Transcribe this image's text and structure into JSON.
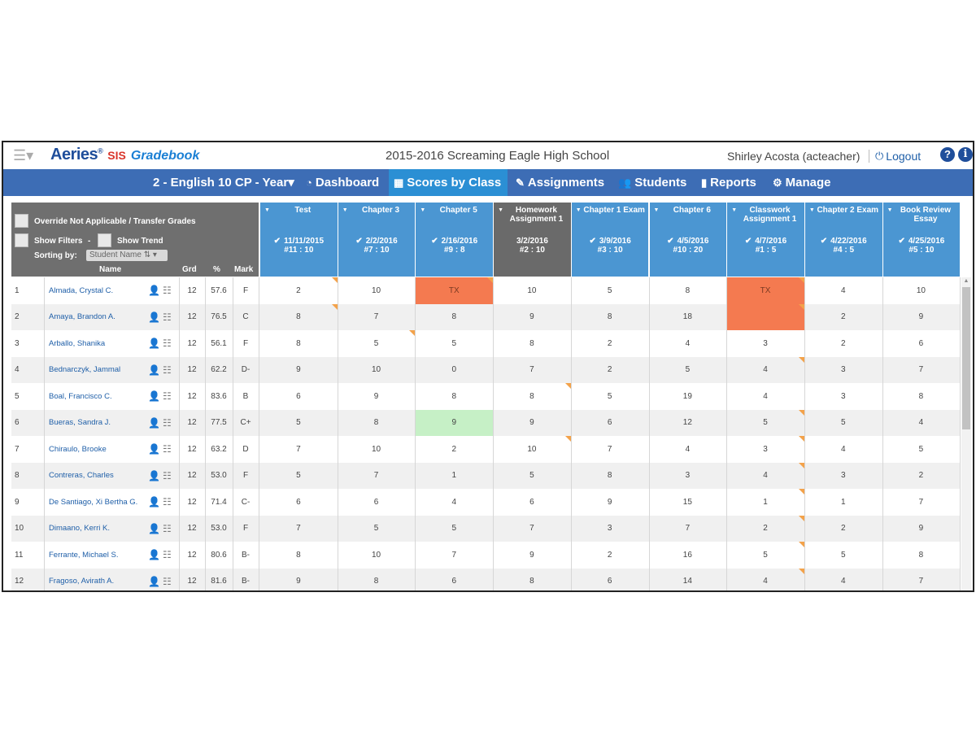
{
  "app": {
    "brand": "Aeries",
    "brand_reg": "®",
    "brand_sis": "SIS",
    "brand_product": "Gradebook",
    "school": "2015-2016 Screaming Eagle High School",
    "user": "Shirley Acosta (acteacher)",
    "logout": "Logout",
    "help_icon": "?",
    "info_icon": "i"
  },
  "nav": {
    "class_select": "2 - English 10 CP - Year",
    "items": [
      {
        "label": "Dashboard",
        "icon": "dashboard-icon"
      },
      {
        "label": "Scores by Class",
        "icon": "table-icon"
      },
      {
        "label": "Assignments",
        "icon": "edit-icon"
      },
      {
        "label": "Students",
        "icon": "users-icon"
      },
      {
        "label": "Reports",
        "icon": "file-icon"
      },
      {
        "label": "Manage",
        "icon": "gear-icon"
      }
    ],
    "active_color": "#2b8fd4",
    "bar_color": "#3d6db5"
  },
  "grid_header": {
    "override_label": "Override Not Applicable / Transfer Grades",
    "show_filters": "Show Filters",
    "dash": "-",
    "show_trend": "Show Trend",
    "sorting_by": "Sorting by:",
    "sort_value": "Student Name",
    "col_name": "Name",
    "col_grd": "Grd",
    "col_pct": "%",
    "col_mark": "Mark"
  },
  "assignments": [
    {
      "title": "Test",
      "date": "11/11/2015",
      "num": "#11 : 10",
      "checked": true
    },
    {
      "title": "Chapter 3",
      "date": "2/2/2016",
      "num": "#7 : 10",
      "checked": true
    },
    {
      "title": "Chapter 5",
      "date": "2/16/2016",
      "num": "#9 : 8",
      "checked": true
    },
    {
      "title": "Homework Assignment 1",
      "date": "3/2/2016",
      "num": "#2 : 10",
      "checked": false
    },
    {
      "title": "Chapter 1 Exam",
      "date": "3/9/2016",
      "num": "#3 : 10",
      "checked": true
    },
    {
      "title": "Chapter 6",
      "date": "4/5/2016",
      "num": "#10 : 20",
      "checked": true
    },
    {
      "title": "Classwork Assignment 1",
      "date": "4/7/2016",
      "num": "#1 : 5",
      "checked": true
    },
    {
      "title": "Chapter 2 Exam",
      "date": "4/22/2016",
      "num": "#4 : 5",
      "checked": true
    },
    {
      "title": "Book Review Essay",
      "date": "4/25/2016",
      "num": "#5 : 10",
      "checked": true
    }
  ],
  "students": [
    {
      "num": "1",
      "name": "Almada, Crystal C.",
      "grd": "12",
      "pct": "57.6",
      "mark": "F",
      "scores": [
        "2",
        "10",
        "TX",
        "10",
        "5",
        "8",
        "TX",
        "4",
        "10"
      ]
    },
    {
      "num": "2",
      "name": "Amaya, Brandon A.",
      "grd": "12",
      "pct": "76.5",
      "mark": "C",
      "scores": [
        "8",
        "7",
        "8",
        "9",
        "8",
        "18",
        "",
        "2",
        "9"
      ]
    },
    {
      "num": "3",
      "name": "Arballo, Shanika",
      "grd": "12",
      "pct": "56.1",
      "mark": "F",
      "scores": [
        "8",
        "5",
        "5",
        "8",
        "2",
        "4",
        "3",
        "2",
        "6"
      ]
    },
    {
      "num": "4",
      "name": "Bednarczyk, Jammal",
      "grd": "12",
      "pct": "62.2",
      "mark": "D-",
      "scores": [
        "9",
        "10",
        "0",
        "7",
        "2",
        "5",
        "4",
        "3",
        "7"
      ]
    },
    {
      "num": "5",
      "name": "Boal, Francisco C.",
      "grd": "12",
      "pct": "83.6",
      "mark": "B",
      "scores": [
        "6",
        "9",
        "8",
        "8",
        "5",
        "19",
        "4",
        "3",
        "8"
      ]
    },
    {
      "num": "6",
      "name": "Bueras, Sandra J.",
      "grd": "12",
      "pct": "77.5",
      "mark": "C+",
      "scores": [
        "5",
        "8",
        "9",
        "9",
        "6",
        "12",
        "5",
        "5",
        "4"
      ]
    },
    {
      "num": "7",
      "name": "Chiraulo, Brooke",
      "grd": "12",
      "pct": "63.2",
      "mark": "D",
      "scores": [
        "7",
        "10",
        "2",
        "10",
        "7",
        "4",
        "3",
        "4",
        "5"
      ]
    },
    {
      "num": "8",
      "name": "Contreras, Charles",
      "grd": "12",
      "pct": "53.0",
      "mark": "F",
      "scores": [
        "5",
        "7",
        "1",
        "5",
        "8",
        "3",
        "4",
        "3",
        "2"
      ]
    },
    {
      "num": "9",
      "name": "De Santiago, Xi Bertha G.",
      "grd": "12",
      "pct": "71.4",
      "mark": "C-",
      "scores": [
        "6",
        "6",
        "4",
        "6",
        "9",
        "15",
        "1",
        "1",
        "7"
      ]
    },
    {
      "num": "10",
      "name": "Dimaano, Kerri K.",
      "grd": "12",
      "pct": "53.0",
      "mark": "F",
      "scores": [
        "7",
        "5",
        "5",
        "7",
        "3",
        "7",
        "2",
        "2",
        "9"
      ]
    },
    {
      "num": "11",
      "name": "Ferrante, Michael S.",
      "grd": "12",
      "pct": "80.6",
      "mark": "B-",
      "scores": [
        "8",
        "10",
        "7",
        "9",
        "2",
        "16",
        "5",
        "5",
        "8"
      ]
    },
    {
      "num": "12",
      "name": "Fragoso, Avirath A.",
      "grd": "12",
      "pct": "81.6",
      "mark": "B-",
      "scores": [
        "9",
        "8",
        "6",
        "8",
        "6",
        "14",
        "4",
        "4",
        "7"
      ]
    }
  ],
  "cell_styles": {
    "tx_color": "#f47a50",
    "highlight_green": "#c6f0c6",
    "comment_flag": "#f3a24a",
    "tx_cells": [
      [
        0,
        2
      ],
      [
        0,
        6
      ],
      [
        1,
        6
      ]
    ],
    "green_cells": [
      [
        5,
        2
      ]
    ],
    "flag_cells": [
      [
        0,
        0
      ],
      [
        0,
        2
      ],
      [
        0,
        6
      ],
      [
        1,
        0
      ],
      [
        1,
        6
      ],
      [
        2,
        1
      ],
      [
        3,
        6
      ],
      [
        4,
        3
      ],
      [
        5,
        6
      ],
      [
        6,
        3
      ],
      [
        6,
        6
      ],
      [
        7,
        6
      ],
      [
        8,
        6
      ],
      [
        9,
        6
      ],
      [
        10,
        6
      ],
      [
        11,
        6
      ]
    ]
  }
}
